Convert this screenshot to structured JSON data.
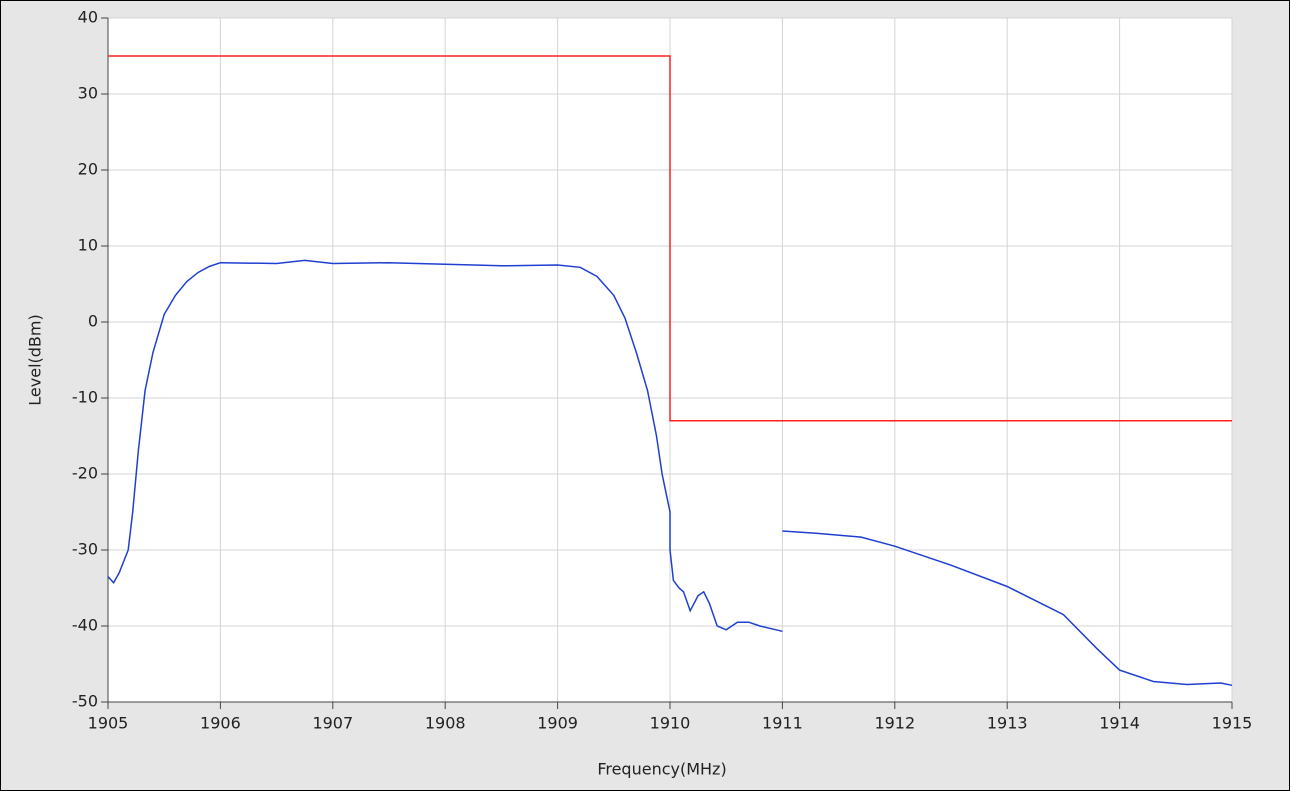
{
  "chart_data": {
    "type": "line",
    "xlabel": "Frequency(MHz)",
    "ylabel": "Level(dBm)",
    "xlim": [
      1905,
      1915
    ],
    "xticks": [
      1905,
      1906,
      1907,
      1908,
      1909,
      1910,
      1911,
      1912,
      1913,
      1914,
      1915
    ],
    "ylim": [
      -50,
      40
    ],
    "yticks": [
      -50,
      -40,
      -30,
      -20,
      -10,
      0,
      10,
      20,
      30,
      40
    ],
    "grid": true,
    "series": [
      {
        "color": "#ff2020",
        "x": [
          1905,
          1910,
          1910,
          1915
        ],
        "values": [
          35,
          35,
          -13,
          -13
        ]
      },
      {
        "color": "#1f3fd0",
        "x": [
          1905,
          1905.05,
          1905.1,
          1905.18,
          1905.22,
          1905.27,
          1905.33,
          1905.4,
          1905.5,
          1905.6,
          1905.7,
          1905.8,
          1905.9,
          1906,
          1906.5,
          1906.75,
          1907,
          1907.5,
          1908,
          1908.5,
          1909,
          1909.2,
          1909.35,
          1909.5,
          1909.6,
          1909.7,
          1909.8,
          1909.88,
          1909.93,
          1910,
          1910,
          1910.03,
          1910.08,
          1910.12,
          1910.18,
          1910.25,
          1910.3,
          1910.35,
          1910.42,
          1910.5,
          1910.6,
          1910.7,
          1910.8,
          1911,
          1911,
          1911,
          1911.3,
          1911.7,
          1912,
          1912.5,
          1913,
          1913.5,
          1913.8,
          1914,
          1914.3,
          1914.6,
          1914.9,
          1915
        ],
        "values": [
          -33.5,
          -34.3,
          -33,
          -30,
          -25,
          -17,
          -9,
          -4,
          1,
          3.5,
          5.3,
          6.5,
          7.3,
          7.8,
          7.7,
          8.1,
          7.7,
          7.8,
          7.6,
          7.4,
          7.5,
          7.2,
          6,
          3.5,
          0.5,
          -4,
          -9,
          -15,
          -20,
          -25,
          -30,
          -34,
          -35,
          -35.5,
          -38,
          -36,
          -35.5,
          -37,
          -40,
          -40.5,
          -39.5,
          -39.5,
          -40,
          -40.7,
          null,
          -27.5,
          -27.8,
          -28.3,
          -29.5,
          -32,
          -34.8,
          -38.5,
          -43,
          -45.8,
          -47.3,
          -47.7,
          -47.5,
          -47.8
        ]
      }
    ]
  }
}
